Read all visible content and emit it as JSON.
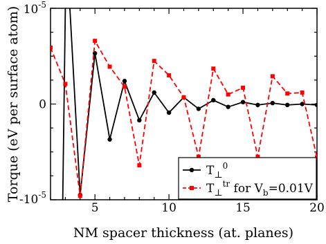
{
  "chart_data": {
    "type": "line",
    "xlabel": "NM spacer thickness (at. planes)",
    "ylabel": "Torque (eV per surface atom)",
    "xlim": [
      2,
      20
    ],
    "ylim": [
      -1e-05,
      1e-05
    ],
    "x_ticks": [
      5,
      10,
      15,
      20
    ],
    "x_tick_labels": [
      "5",
      "10",
      "15",
      "20"
    ],
    "y_tick_labels": [
      {
        "value": 1e-05,
        "base": "10",
        "exp": "-5",
        "sign": ""
      },
      {
        "value": 0,
        "base": "0",
        "exp": "",
        "sign": ""
      },
      {
        "value": -1e-05,
        "base": "10",
        "exp": "-5",
        "sign": "-"
      }
    ],
    "legend_position": "bottom-right",
    "series": [
      {
        "name_main": "T",
        "name_sub": "⊥",
        "name_sup": "0",
        "name_tail": "",
        "color": "#000000",
        "style": "solid",
        "marker": "circle",
        "x": [
          2.8,
          3,
          3.2,
          4,
          5,
          6,
          7,
          8,
          9,
          10,
          11,
          12,
          13,
          14,
          15,
          16,
          17,
          18,
          19,
          20
        ],
        "y": [
          -1.3e-05,
          1e-05,
          1.3e-05,
          -9.5e-06,
          5.3e-06,
          -3.7e-06,
          2.4e-06,
          -1.7e-06,
          1.2e-06,
          -9e-07,
          7e-07,
          -5e-07,
          4e-07,
          -3e-07,
          2e-07,
          -1e-07,
          1e-07,
          -1e-07,
          0,
          -1e-07
        ],
        "markers_x": [
          4,
          5,
          6,
          7,
          8,
          9,
          10,
          11,
          12,
          13,
          14,
          15,
          16,
          17,
          18,
          19,
          20
        ],
        "markers_y": [
          -9.5e-06,
          5.3e-06,
          -3.7e-06,
          2.4e-06,
          -1.7e-06,
          1.2e-06,
          -9e-07,
          7e-07,
          -5e-07,
          4e-07,
          -3e-07,
          2e-07,
          -1e-07,
          1e-07,
          -1e-07,
          0,
          -1e-07
        ]
      },
      {
        "name_main": "T",
        "name_sub": "⊥",
        "name_sup": "tr",
        "name_tail": " for V",
        "name_tail_sub": "b",
        "name_tail_end": "=0.01V",
        "color": "#ff0000",
        "style": "dashed",
        "marker": "square",
        "x": [
          2,
          3,
          4,
          5,
          6,
          7,
          8,
          9,
          10,
          11,
          12,
          13,
          14,
          15,
          16,
          17,
          18,
          19,
          20
        ],
        "y": [
          5.9e-06,
          2.1e-06,
          -9.6e-06,
          6.6e-06,
          3.9e-06,
          1.8e-06,
          -6.4e-06,
          4.5e-06,
          3e-06,
          7e-07,
          -5.5e-06,
          3.7e-06,
          1e-06,
          1.7e-06,
          -5.5e-06,
          2.9e-06,
          1.1e-06,
          1.2e-06,
          -5.6e-06
        ],
        "markers_x": [
          2,
          3,
          4,
          5,
          6,
          7,
          8,
          9,
          10,
          11,
          12,
          13,
          14,
          15,
          16,
          17,
          18,
          19,
          20
        ],
        "markers_y": [
          5.9e-06,
          2.1e-06,
          -9.6e-06,
          6.6e-06,
          3.9e-06,
          1.8e-06,
          -6.4e-06,
          4.5e-06,
          3e-06,
          7e-07,
          -5.5e-06,
          3.7e-06,
          1e-06,
          1.7e-06,
          -5.5e-06,
          2.9e-06,
          1.1e-06,
          1.2e-06,
          -5.6e-06
        ]
      }
    ]
  }
}
